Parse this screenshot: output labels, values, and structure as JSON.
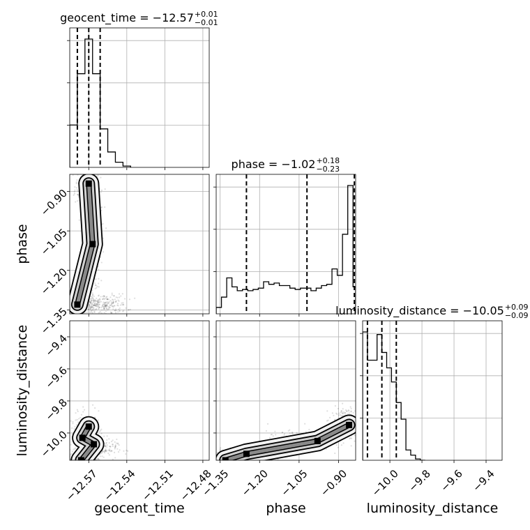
{
  "chart_data": {
    "type": "corner",
    "parameters": [
      "geocent_time",
      "phase",
      "luminosity_distance"
    ],
    "titles": [
      {
        "text": "geocent_time = −12.57",
        "plus": "+0.01",
        "minus": "−0.01"
      },
      {
        "text": "phase = −1.02",
        "plus": "+0.18",
        "minus": "−0.23"
      },
      {
        "text": "luminosity_distance = −10.05",
        "plus": "+0.09",
        "minus": "−0.09"
      }
    ],
    "ranges": [
      [
        -12.585,
        -12.475
      ],
      [
        -1.365,
        -0.835
      ],
      [
        -10.17,
        -9.3
      ]
    ],
    "ticks": [
      [
        {
          "v": -12.57,
          "label": "−12.57"
        },
        {
          "v": -12.54,
          "label": "−12.54"
        },
        {
          "v": -12.51,
          "label": "−12.51"
        },
        {
          "v": -12.48,
          "label": "−12.48"
        }
      ],
      [
        {
          "v": -1.35,
          "label": "−1.35"
        },
        {
          "v": -1.2,
          "label": "−1.20"
        },
        {
          "v": -1.05,
          "label": "−1.05"
        },
        {
          "v": -0.9,
          "label": "−0.90"
        }
      ],
      [
        {
          "v": -10.0,
          "label": "−10.0"
        },
        {
          "v": -9.8,
          "label": "−9.8"
        },
        {
          "v": -9.6,
          "label": "−9.6"
        },
        {
          "v": -9.4,
          "label": "−9.4"
        }
      ]
    ],
    "quantiles": [
      [
        -12.579,
        -12.57,
        -12.561
      ],
      [
        -1.25,
        -1.02,
        -0.84
      ],
      [
        -10.14,
        -10.05,
        -9.96
      ]
    ],
    "histograms": [
      {
        "edges": [
          -12.585,
          -12.579,
          -12.573,
          -12.567,
          -12.561,
          -12.555,
          -12.549,
          -12.543,
          -12.537
        ],
        "counts": [
          0.33,
          0.73,
          1.0,
          0.73,
          0.3,
          0.12,
          0.04,
          0.01
        ]
      },
      {
        "edges": [
          -1.365,
          -1.345,
          -1.325,
          -1.305,
          -1.285,
          -1.265,
          -1.245,
          -1.225,
          -1.205,
          -1.185,
          -1.165,
          -1.145,
          -1.125,
          -1.105,
          -1.085,
          -1.065,
          -1.045,
          -1.025,
          -1.005,
          -0.985,
          -0.965,
          -0.945,
          -0.925,
          -0.905,
          -0.885,
          -0.865,
          -0.845,
          -0.835
        ],
        "counts": [
          0.05,
          0.13,
          0.28,
          0.21,
          0.18,
          0.19,
          0.18,
          0.19,
          0.2,
          0.25,
          0.23,
          0.24,
          0.22,
          0.22,
          0.2,
          0.19,
          0.2,
          0.2,
          0.18,
          0.2,
          0.22,
          0.23,
          0.35,
          0.3,
          0.62,
          1.0,
          0.21
        ]
      },
      {
        "edges": [
          -10.17,
          -10.14,
          -10.11,
          -10.08,
          -10.05,
          -10.02,
          -9.99,
          -9.96,
          -9.93,
          -9.9,
          -9.87,
          -9.84,
          -9.81,
          -9.78
        ],
        "counts": [
          1.0,
          0.78,
          0.78,
          0.98,
          0.84,
          0.72,
          0.61,
          0.45,
          0.32,
          0.08,
          0.04,
          0.01,
          0.0
        ]
      }
    ],
    "pair_density": [
      {
        "x": 0,
        "y": 1,
        "hotspots": [
          [
            -12.57,
            -0.87
          ],
          [
            -12.567,
            -1.1
          ],
          [
            -12.579,
            -1.33
          ]
        ],
        "scatter_center": [
          [
            -12.571,
            -0.88
          ],
          [
            -12.566,
            -1.1
          ],
          [
            -12.577,
            -1.33
          ],
          [
            -12.56,
            -1.33
          ]
        ],
        "scatter_spread": [
          [
            0.005,
            0.04
          ],
          [
            0.004,
            0.09
          ],
          [
            0.006,
            0.03
          ],
          [
            0.01,
            0.02
          ]
        ]
      },
      {
        "x": 0,
        "y": 2,
        "hotspots": [
          [
            -12.57,
            -9.96
          ],
          [
            -12.575,
            -10.03
          ],
          [
            -12.566,
            -10.07
          ],
          [
            -12.576,
            -10.17
          ]
        ],
        "scatter_center": [
          [
            -12.572,
            -10.0
          ],
          [
            -12.566,
            -10.1
          ],
          [
            -12.575,
            -10.16
          ]
        ],
        "scatter_spread": [
          [
            0.006,
            0.06
          ],
          [
            0.009,
            0.03
          ],
          [
            0.006,
            0.02
          ]
        ]
      },
      {
        "x": 1,
        "y": 2,
        "hotspots": [
          [
            -0.86,
            -9.95
          ],
          [
            -0.98,
            -10.05
          ],
          [
            -1.25,
            -10.13
          ],
          [
            -1.33,
            -10.17
          ]
        ],
        "scatter_center": [
          [
            -0.87,
            -9.94
          ],
          [
            -1.05,
            -10.05
          ],
          [
            -1.25,
            -10.13
          ],
          [
            -1.33,
            -10.16
          ]
        ],
        "scatter_spread": [
          [
            0.03,
            0.05
          ],
          [
            0.06,
            0.03
          ],
          [
            0.05,
            0.02
          ],
          [
            0.03,
            0.02
          ]
        ]
      }
    ]
  }
}
